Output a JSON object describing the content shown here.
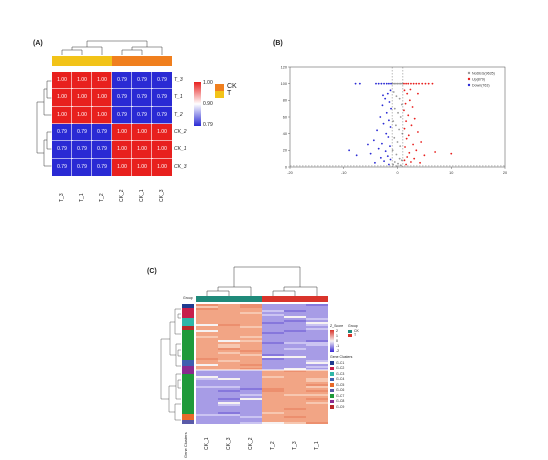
{
  "panel_a": {
    "label": "(A)",
    "rows": [
      "T_3",
      "T_1",
      "T_2",
      "CK_2",
      "CK_1",
      "CK_3"
    ],
    "cols": [
      "T_3",
      "T_1",
      "T_2",
      "CK_2",
      "CK_1",
      "CK_3"
    ],
    "values": [
      [
        1.0,
        1.0,
        1.0,
        0.79,
        0.79,
        0.79
      ],
      [
        1.0,
        1.0,
        1.0,
        0.79,
        0.79,
        0.79
      ],
      [
        1.0,
        1.0,
        1.0,
        0.79,
        0.79,
        0.79
      ],
      [
        0.79,
        0.79,
        0.79,
        1.0,
        1.0,
        1.0
      ],
      [
        0.79,
        0.79,
        0.79,
        1.0,
        1.0,
        1.0
      ],
      [
        0.79,
        0.79,
        0.79,
        1.0,
        1.0,
        1.0
      ]
    ],
    "cell_text": [
      [
        "1.00",
        "1.00",
        "1.00",
        "0.79",
        "0.79",
        "0.79"
      ],
      [
        "1.00",
        "1.00",
        "1.00",
        "0.79",
        "0.79",
        "0.79"
      ],
      [
        "1.00",
        "1.00",
        "1.00",
        "0.79",
        "0.79",
        "0.79"
      ],
      [
        "0.79",
        "0.79",
        "0.79",
        "1.00",
        "1.00",
        "1.00"
      ],
      [
        "0.79",
        "0.79",
        "0.79",
        "1.00",
        "1.00",
        "1.00"
      ],
      [
        "0.79",
        "0.79",
        "0.79",
        "1.00",
        "1.00",
        "1.00"
      ]
    ],
    "scale_labels": [
      "1.00",
      "0.90",
      "0.79"
    ],
    "legend": [
      {
        "name": "CK",
        "color": "#f07f1e"
      },
      {
        "name": "T",
        "color": "#f2c318"
      }
    ],
    "colors": {
      "high": "#e8201e",
      "low": "#2a2ad4"
    }
  },
  "panel_b": {
    "label": "(B)",
    "chart_data": {
      "type": "scatter",
      "xlim": [
        -20,
        20
      ],
      "ylim": [
        0,
        120
      ],
      "x_ticks": [
        "-20",
        "-10",
        "0",
        "10",
        "20"
      ],
      "y_ticks": [
        "0",
        "20",
        "40",
        "60",
        "80",
        "100",
        "120"
      ],
      "thresholds": {
        "x": [
          -1,
          1
        ],
        "y": 1.3
      },
      "legend": [
        {
          "name": "NoDEG(9635)",
          "color": "#9a9a9a"
        },
        {
          "name": "Up(879)",
          "color": "#e8201e"
        },
        {
          "name": "Down(763)",
          "color": "#2a2ad4"
        }
      ],
      "series": [
        {
          "name": "NoDEG(9635)",
          "color": "#9a9a9a",
          "points": [
            [
              -0.9,
              100
            ],
            [
              -0.6,
              100
            ],
            [
              -0.3,
              100
            ],
            [
              0,
              100
            ],
            [
              0.3,
              100
            ],
            [
              0.6,
              100
            ],
            [
              0.9,
              100
            ],
            [
              -0.7,
              90
            ],
            [
              -0.2,
              85
            ],
            [
              0.4,
              82
            ],
            [
              0.8,
              75
            ],
            [
              -0.5,
              70
            ],
            [
              0.1,
              65
            ],
            [
              0.6,
              60
            ],
            [
              -0.8,
              55
            ],
            [
              -0.3,
              50
            ],
            [
              0.3,
              45
            ],
            [
              0.9,
              40
            ],
            [
              -0.6,
              35
            ],
            [
              0,
              30
            ],
            [
              0.5,
              25
            ],
            [
              -0.9,
              20
            ],
            [
              -0.2,
              15
            ],
            [
              0.4,
              10
            ],
            [
              0.8,
              8
            ],
            [
              -0.5,
              6
            ],
            [
              0.1,
              4
            ],
            [
              -0.8,
              3
            ],
            [
              0.6,
              2
            ],
            [
              -0.1,
              1
            ]
          ]
        },
        {
          "name": "Up(879)",
          "color": "#e8201e",
          "points": [
            [
              1.2,
              100
            ],
            [
              1.6,
              100
            ],
            [
              2,
              100
            ],
            [
              2.5,
              100
            ],
            [
              3,
              100
            ],
            [
              3.5,
              100
            ],
            [
              4,
              100
            ],
            [
              4.6,
              100
            ],
            [
              5.2,
              100
            ],
            [
              5.8,
              100
            ],
            [
              6.5,
              100
            ],
            [
              1.3,
              92
            ],
            [
              1.8,
              88
            ],
            [
              2.3,
              80
            ],
            [
              1.5,
              76
            ],
            [
              2.8,
              72
            ],
            [
              1.2,
              68
            ],
            [
              2,
              62
            ],
            [
              3.2,
              58
            ],
            [
              1.6,
              55
            ],
            [
              2.6,
              50
            ],
            [
              1.3,
              46
            ],
            [
              3.8,
              42
            ],
            [
              2.1,
              38
            ],
            [
              1.7,
              34
            ],
            [
              4.4,
              30
            ],
            [
              2.9,
              27
            ],
            [
              1.4,
              24
            ],
            [
              3.5,
              20
            ],
            [
              2.2,
              17
            ],
            [
              5,
              14
            ],
            [
              1.8,
              12
            ],
            [
              3.1,
              10
            ],
            [
              1.3,
              8
            ],
            [
              2.5,
              6
            ],
            [
              4.2,
              5
            ],
            [
              1.6,
              3
            ],
            [
              10,
              16
            ],
            [
              7,
              18
            ],
            [
              3.8,
              88
            ],
            [
              2.4,
              93
            ]
          ]
        },
        {
          "name": "Down(763)",
          "color": "#2a2ad4",
          "points": [
            [
              -1.2,
              100
            ],
            [
              -1.6,
              100
            ],
            [
              -2,
              100
            ],
            [
              -2.5,
              100
            ],
            [
              -3,
              100
            ],
            [
              -3.5,
              100
            ],
            [
              -4,
              100
            ],
            [
              -7,
              100
            ],
            [
              -7.8,
              100
            ],
            [
              -1.3,
              92
            ],
            [
              -1.8,
              88
            ],
            [
              -2.3,
              82
            ],
            [
              -1.5,
              78
            ],
            [
              -2.8,
              74
            ],
            [
              -1.2,
              70
            ],
            [
              -2,
              65
            ],
            [
              -3.2,
              60
            ],
            [
              -1.6,
              56
            ],
            [
              -2.6,
              52
            ],
            [
              -1.3,
              48
            ],
            [
              -3.8,
              44
            ],
            [
              -2.1,
              40
            ],
            [
              -1.7,
              36
            ],
            [
              -4.4,
              32
            ],
            [
              -2.9,
              28
            ],
            [
              -1.4,
              25
            ],
            [
              -3.5,
              22
            ],
            [
              -2.2,
              19
            ],
            [
              -5,
              16
            ],
            [
              -1.8,
              13
            ],
            [
              -3.1,
              11
            ],
            [
              -1.3,
              9
            ],
            [
              -2.5,
              7
            ],
            [
              -4.2,
              5
            ],
            [
              -1.6,
              3
            ],
            [
              -7.6,
              14
            ],
            [
              -9,
              20
            ],
            [
              -5.5,
              27
            ],
            [
              -2.7,
              86
            ]
          ]
        }
      ]
    }
  },
  "panel_c": {
    "label": "(C)",
    "group_label": "Group",
    "gene_clusters_label": "Gene Clusters",
    "cols": [
      "CK_1",
      "CK_3",
      "CK_2",
      "T_2",
      "T_3",
      "T_1"
    ],
    "group_colors": {
      "CK": "#1f8a7a",
      "T": "#d9342b"
    },
    "zscore_title": "Z_Score",
    "zscore_ticks": [
      "2",
      "1",
      "0",
      "-1",
      "-2"
    ],
    "group_legend_title": "Group",
    "group_legend": [
      {
        "name": "CK",
        "color": "#1f8a7a"
      },
      {
        "name": "T",
        "color": "#d9342b"
      }
    ],
    "cluster_legend_title": "Gene Clusters",
    "clusters": [
      {
        "name": "G-C1",
        "color": "#1f3b8f"
      },
      {
        "name": "G-C2",
        "color": "#c71f4a"
      },
      {
        "name": "G-C3",
        "color": "#2fb7a8"
      },
      {
        "name": "G-C4",
        "color": "#3f5fb0"
      },
      {
        "name": "G-C5",
        "color": "#e86a2a"
      },
      {
        "name": "G-C6",
        "color": "#5a5aa8"
      },
      {
        "name": "G-C7",
        "color": "#1f9a3a"
      },
      {
        "name": "G-C8",
        "color": "#8a2a8f"
      },
      {
        "name": "G-C9",
        "color": "#b82a2a"
      }
    ],
    "colors": {
      "up": "#f2a585",
      "down": "#a79ce6",
      "mid": "#f6f2f2"
    }
  }
}
